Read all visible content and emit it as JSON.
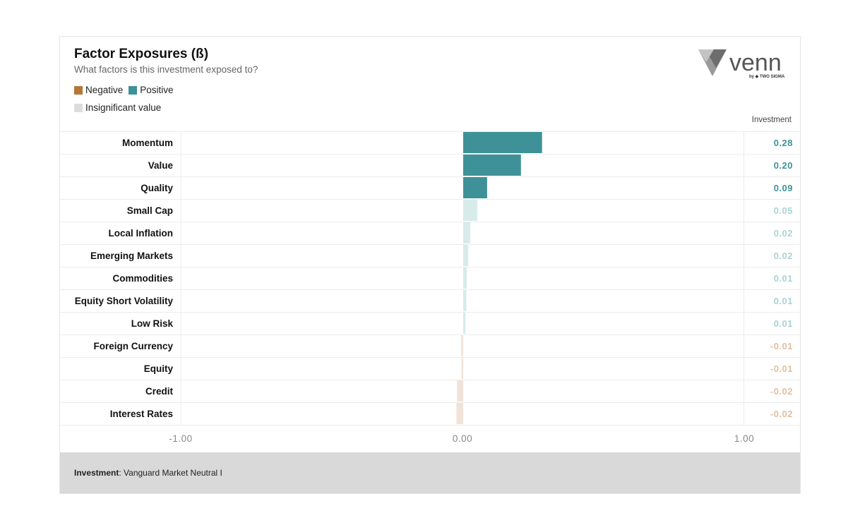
{
  "header": {
    "title": "Factor Exposures (ß)",
    "subtitle": "What factors is this investment exposed to?"
  },
  "legend": {
    "negative_label": "Negative",
    "positive_label": "Positive",
    "insignificant_label": "Insignificant value"
  },
  "logo": {
    "brand": "venn",
    "byline": "by ◆ TWO SIGMA"
  },
  "colors": {
    "negative": "#b5763a",
    "positive": "#3e9297",
    "insignificant": "#dcdcdc",
    "positive_faint": "#d7ebeb",
    "negative_faint": "#f1e3d8",
    "positive_faint_text": "#a9d3d4",
    "negative_faint_text": "#e2c09e"
  },
  "column_header": "Investment",
  "chart_data": {
    "type": "bar",
    "orientation": "horizontal",
    "xlim": [
      -1,
      1
    ],
    "tick_labels": [
      "-1.00",
      "0.00",
      "1.00"
    ],
    "categories": [
      "Momentum",
      "Value",
      "Quality",
      "Small Cap",
      "Local Inflation",
      "Emerging Markets",
      "Commodities",
      "Equity Short Volatility",
      "Low Risk",
      "Foreign Currency",
      "Equity",
      "Credit",
      "Interest Rates"
    ],
    "values": [
      0.28,
      0.205,
      0.085,
      0.05,
      0.025,
      0.018,
      0.013,
      0.011,
      0.008,
      -0.007,
      -0.006,
      -0.022,
      -0.024
    ],
    "value_labels": [
      "0.28",
      "0.20",
      "0.09",
      "0.05",
      "0.02",
      "0.02",
      "0.01",
      "0.01",
      "0.01",
      "-0.01",
      "-0.01",
      "-0.02",
      "-0.02"
    ],
    "significant": [
      true,
      true,
      true,
      false,
      false,
      false,
      false,
      false,
      false,
      false,
      false,
      false,
      false
    ]
  },
  "footer": {
    "label": "Investment",
    "value": ": Vanguard Market Neutral I"
  }
}
